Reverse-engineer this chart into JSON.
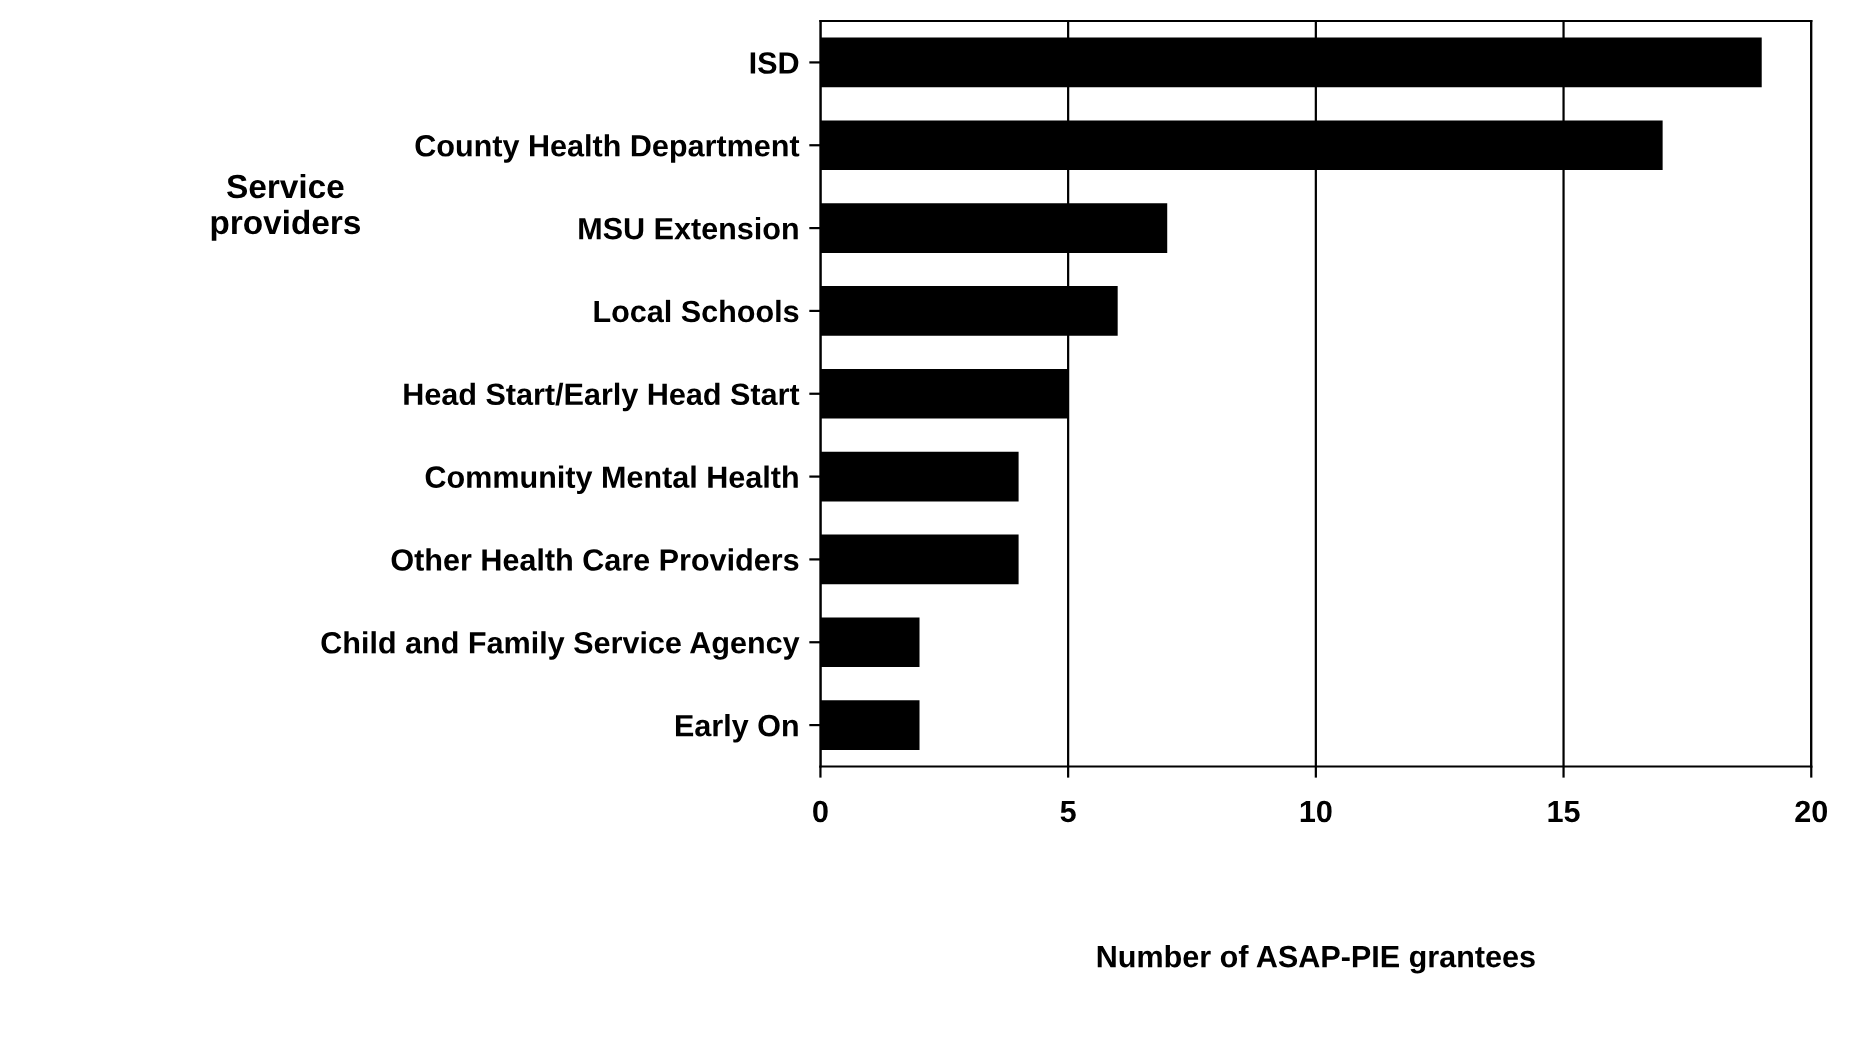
{
  "chart_data": {
    "type": "bar",
    "orientation": "horizontal",
    "categories": [
      "ISD",
      "County Health Department",
      "MSU Extension",
      "Local Schools",
      "Head Start/Early Head Start",
      "Community Mental Health",
      "Other Health Care Providers",
      "Child and Family Service Agency",
      "Early On"
    ],
    "values": [
      19,
      17,
      7,
      6,
      5,
      4,
      4,
      2,
      2
    ],
    "color": "#000000",
    "xlim": [
      0,
      20
    ],
    "xticks": [
      0,
      5,
      10,
      15,
      20
    ],
    "grid": "x",
    "xlabel": "Number of ASAP-PIE grantees",
    "ylabel": "Service\nproviders"
  }
}
